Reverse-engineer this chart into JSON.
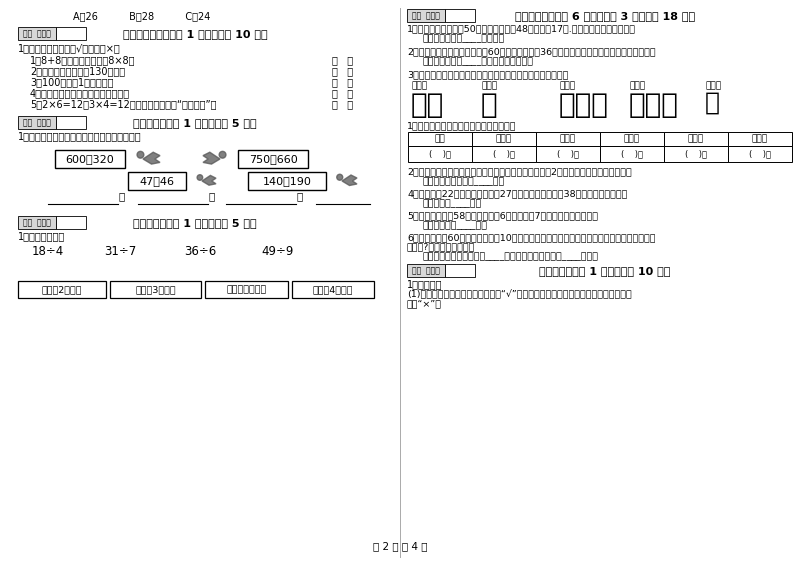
{
  "bg_color": "#ffffff",
  "left_col": {
    "top_answers": "A．26          B．28          C．24",
    "section5_header": "五、判断对与错（共 1 大题，共计 10 分）",
    "section5_instruction": "1．判断对错，对的打√，错的打×。",
    "section5_items": [
      "1．8+8改写成乘法算式是8×8．",
      "2．小明的身高大约是130厘米．",
      "3．100厘米和1米一样长．",
      "4．角的两条边越长，这个角就越大．",
      "5．2×6=12和3×4=12都可以用乘法口诀“三四十二”．"
    ],
    "section6_header": "六、比一比（共 1 大题，共计 5 分）",
    "section6_instruction": "1．把下列算式按得数大小，从小到大排一行．",
    "boxes": [
      "600－320",
      "750－660",
      "47＋46",
      "140＋190"
    ],
    "section7_header": "七、连一连（共 1 大题，共计 5 分）",
    "section7_instruction": "1．用线连一连．",
    "division_items": [
      "18÷4",
      "31÷7",
      "36÷6",
      "49÷9"
    ],
    "category_boxes": [
      "余数是2的算式",
      "余数是3的算式",
      "没有余数的算式",
      "余数是4的算式"
    ]
  },
  "right_col": {
    "section8_header": "八、解决问题（共 6 小题，每题 3 分，共计 18 分）",
    "tally_headers": [
      "航模组",
      "书法组",
      "美术组",
      "电脑组",
      "科技组"
    ],
    "tally_marks": [
      "正丁",
      "正",
      "正正正",
      "正正下",
      "正"
    ],
    "table_headers": [
      "合计",
      "航模组",
      "书法组",
      "美术组",
      "电脑组",
      "科技组"
    ],
    "section10_header": "十、综合题（共 1 大题，共计 10 分）",
    "section10_instruction": "1．看一看。"
  },
  "footer": "第 2 页 共 4 页"
}
